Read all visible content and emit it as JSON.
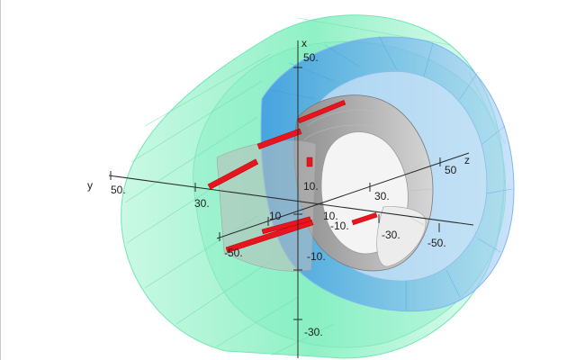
{
  "axes": {
    "x": {
      "name": "x",
      "ticks": [
        "50.",
        "10.",
        "-10.",
        "-30."
      ]
    },
    "y": {
      "name": "y",
      "ticks": [
        "50.",
        "30.",
        "10",
        "-50."
      ]
    },
    "z": {
      "name": "z",
      "ticks": [
        "50",
        "30.",
        "10.",
        "-10.",
        "-30.",
        "-50."
      ]
    }
  },
  "colors": {
    "outer_shell": "#3ee6a0",
    "middle_shell": "#5aa8ee",
    "inner_shell": "#a8a8a8",
    "red_segments": "#e8141e",
    "axis_line": "#2a2a2a"
  }
}
